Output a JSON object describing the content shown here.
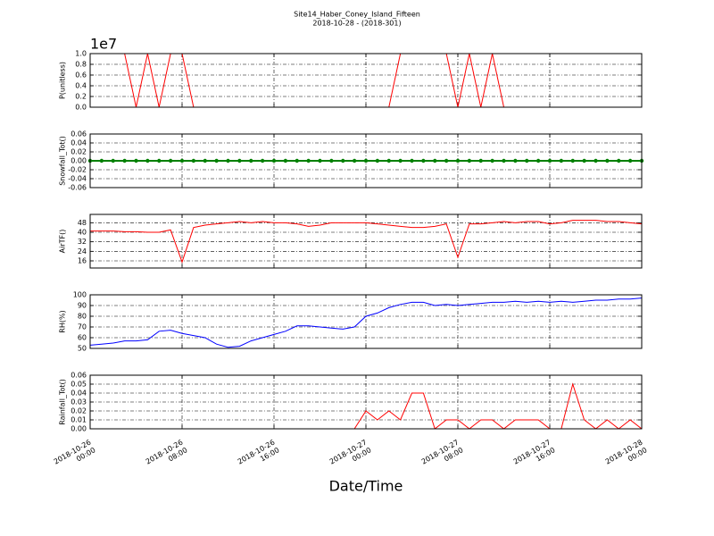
{
  "chart_data": [
    {
      "type": "line",
      "title": "Site14_Haber_Coney_Island_Fifteen",
      "subtitle": "2018-10-28 - (2018-301)",
      "ylabel": "P(unitless)",
      "offset_label": "1e7",
      "x": [
        "2018-10-26 00:00",
        "2018-10-26 01:00",
        "2018-10-26 02:00",
        "2018-10-26 03:00",
        "2018-10-26 04:00",
        "2018-10-26 05:00",
        "2018-10-26 06:00",
        "2018-10-26 07:00",
        "2018-10-26 08:00",
        "2018-10-26 09:00",
        "2018-10-26 10:00",
        "2018-10-26 11:00",
        "2018-10-26 12:00",
        "2018-10-26 13:00",
        "2018-10-26 14:00",
        "2018-10-26 15:00",
        "2018-10-26 16:00",
        "2018-10-26 17:00",
        "2018-10-26 18:00",
        "2018-10-26 19:00",
        "2018-10-26 20:00",
        "2018-10-26 21:00",
        "2018-10-26 22:00",
        "2018-10-26 23:00",
        "2018-10-27 00:00",
        "2018-10-27 01:00",
        "2018-10-27 02:00",
        "2018-10-27 03:00",
        "2018-10-27 04:00",
        "2018-10-27 05:00",
        "2018-10-27 06:00",
        "2018-10-27 07:00",
        "2018-10-27 08:00",
        "2018-10-27 09:00",
        "2018-10-27 10:00",
        "2018-10-27 11:00",
        "2018-10-27 12:00",
        "2018-10-27 13:00",
        "2018-10-27 14:00",
        "2018-10-27 15:00",
        "2018-10-27 16:00",
        "2018-10-27 17:00",
        "2018-10-27 18:00",
        "2018-10-27 19:00",
        "2018-10-27 20:00",
        "2018-10-27 21:00",
        "2018-10-27 22:00",
        "2018-10-27 23:00",
        "2018-10-28 00:00"
      ],
      "xlim": [
        "2018-10-26 00:00",
        "2018-10-28 00:00"
      ],
      "series": [
        {
          "color": "#ff0000",
          "values": [
            1,
            1,
            1,
            1,
            0,
            1,
            0,
            1,
            1,
            0,
            0,
            0,
            0,
            0,
            0,
            0,
            0,
            0,
            0,
            0,
            0,
            0,
            0,
            0,
            0,
            0,
            0,
            1,
            1,
            1,
            1,
            1,
            0,
            1,
            0,
            1,
            0,
            0,
            0,
            0,
            0,
            0,
            0,
            0,
            0,
            0,
            0,
            0,
            0
          ]
        }
      ],
      "ylim": [
        0,
        1
      ],
      "yticks": [
        {
          "value": 0,
          "label": "0.0"
        },
        {
          "value": 0.2,
          "label": "0.2"
        },
        {
          "value": 0.4,
          "label": "0.4"
        },
        {
          "value": 0.6,
          "label": "0.6"
        },
        {
          "value": 0.8,
          "label": "0.8"
        },
        {
          "value": 1,
          "label": "1.0"
        }
      ],
      "grid": true
    },
    {
      "type": "line",
      "ylabel": "Snowfall_Tot()",
      "x": [
        "2018-10-26 00:00",
        "2018-10-26 01:00",
        "2018-10-26 02:00",
        "2018-10-26 03:00",
        "2018-10-26 04:00",
        "2018-10-26 05:00",
        "2018-10-26 06:00",
        "2018-10-26 07:00",
        "2018-10-26 08:00",
        "2018-10-26 09:00",
        "2018-10-26 10:00",
        "2018-10-26 11:00",
        "2018-10-26 12:00",
        "2018-10-26 13:00",
        "2018-10-26 14:00",
        "2018-10-26 15:00",
        "2018-10-26 16:00",
        "2018-10-26 17:00",
        "2018-10-26 18:00",
        "2018-10-26 19:00",
        "2018-10-26 20:00",
        "2018-10-26 21:00",
        "2018-10-26 22:00",
        "2018-10-26 23:00",
        "2018-10-27 00:00",
        "2018-10-27 01:00",
        "2018-10-27 02:00",
        "2018-10-27 03:00",
        "2018-10-27 04:00",
        "2018-10-27 05:00",
        "2018-10-27 06:00",
        "2018-10-27 07:00",
        "2018-10-27 08:00",
        "2018-10-27 09:00",
        "2018-10-27 10:00",
        "2018-10-27 11:00",
        "2018-10-27 12:00",
        "2018-10-27 13:00",
        "2018-10-27 14:00",
        "2018-10-27 15:00",
        "2018-10-27 16:00",
        "2018-10-27 17:00",
        "2018-10-27 18:00",
        "2018-10-27 19:00",
        "2018-10-27 20:00",
        "2018-10-27 21:00",
        "2018-10-27 22:00",
        "2018-10-27 23:00",
        "2018-10-28 00:00"
      ],
      "xlim": [
        "2018-10-26 00:00",
        "2018-10-28 00:00"
      ],
      "series": [
        {
          "color": "#008000",
          "marker": true,
          "values": [
            0,
            0,
            0,
            0,
            0,
            0,
            0,
            0,
            0,
            0,
            0,
            0,
            0,
            0,
            0,
            0,
            0,
            0,
            0,
            0,
            0,
            0,
            0,
            0,
            0,
            0,
            0,
            0,
            0,
            0,
            0,
            0,
            0,
            0,
            0,
            0,
            0,
            0,
            0,
            0,
            0,
            0,
            0,
            0,
            0,
            0,
            0,
            0,
            0
          ]
        }
      ],
      "ylim": [
        -0.06,
        0.06
      ],
      "yticks": [
        -0.06,
        -0.04,
        -0.02,
        {
          "value": 0,
          "label": "0.00"
        },
        0.02,
        0.04,
        0.06
      ],
      "grid": true
    },
    {
      "type": "line",
      "ylabel": "AirTF()",
      "x": [
        "2018-10-26 00:00",
        "2018-10-26 01:00",
        "2018-10-26 02:00",
        "2018-10-26 03:00",
        "2018-10-26 04:00",
        "2018-10-26 05:00",
        "2018-10-26 06:00",
        "2018-10-26 07:00",
        "2018-10-26 08:00",
        "2018-10-26 09:00",
        "2018-10-26 10:00",
        "2018-10-26 11:00",
        "2018-10-26 12:00",
        "2018-10-26 13:00",
        "2018-10-26 14:00",
        "2018-10-26 15:00",
        "2018-10-26 16:00",
        "2018-10-26 17:00",
        "2018-10-26 18:00",
        "2018-10-26 19:00",
        "2018-10-26 20:00",
        "2018-10-26 21:00",
        "2018-10-26 22:00",
        "2018-10-26 23:00",
        "2018-10-27 00:00",
        "2018-10-27 01:00",
        "2018-10-27 02:00",
        "2018-10-27 03:00",
        "2018-10-27 04:00",
        "2018-10-27 05:00",
        "2018-10-27 06:00",
        "2018-10-27 07:00",
        "2018-10-27 08:00",
        "2018-10-27 09:00",
        "2018-10-27 10:00",
        "2018-10-27 11:00",
        "2018-10-27 12:00",
        "2018-10-27 13:00",
        "2018-10-27 14:00",
        "2018-10-27 15:00",
        "2018-10-27 16:00",
        "2018-10-27 17:00",
        "2018-10-27 18:00",
        "2018-10-27 19:00",
        "2018-10-27 20:00",
        "2018-10-27 21:00",
        "2018-10-27 22:00",
        "2018-10-27 23:00",
        "2018-10-28 00:00"
      ],
      "xlim": [
        "2018-10-26 00:00",
        "2018-10-28 00:00"
      ],
      "series": [
        {
          "color": "#ff0000",
          "values": [
            41,
            41,
            41,
            40.5,
            40.5,
            40,
            40,
            42,
            15,
            44,
            46,
            47,
            48,
            49,
            48,
            49,
            48,
            48,
            47,
            45,
            46,
            48,
            48,
            48,
            48,
            47,
            46,
            45,
            44,
            44,
            45,
            47,
            19,
            47,
            47,
            48,
            49,
            48,
            49,
            49,
            47,
            48,
            50,
            50,
            50,
            49,
            49,
            48,
            47
          ]
        }
      ],
      "ylim": [
        10,
        55
      ],
      "yticks": [
        16,
        24,
        32,
        40,
        48
      ],
      "grid": true
    },
    {
      "type": "line",
      "ylabel": "RH(%)",
      "x": [
        "2018-10-26 00:00",
        "2018-10-26 01:00",
        "2018-10-26 02:00",
        "2018-10-26 03:00",
        "2018-10-26 04:00",
        "2018-10-26 05:00",
        "2018-10-26 06:00",
        "2018-10-26 07:00",
        "2018-10-26 08:00",
        "2018-10-26 09:00",
        "2018-10-26 10:00",
        "2018-10-26 11:00",
        "2018-10-26 12:00",
        "2018-10-26 13:00",
        "2018-10-26 14:00",
        "2018-10-26 15:00",
        "2018-10-26 16:00",
        "2018-10-26 17:00",
        "2018-10-26 18:00",
        "2018-10-26 19:00",
        "2018-10-26 20:00",
        "2018-10-26 21:00",
        "2018-10-26 22:00",
        "2018-10-26 23:00",
        "2018-10-27 00:00",
        "2018-10-27 01:00",
        "2018-10-27 02:00",
        "2018-10-27 03:00",
        "2018-10-27 04:00",
        "2018-10-27 05:00",
        "2018-10-27 06:00",
        "2018-10-27 07:00",
        "2018-10-27 08:00",
        "2018-10-27 09:00",
        "2018-10-27 10:00",
        "2018-10-27 11:00",
        "2018-10-27 12:00",
        "2018-10-27 13:00",
        "2018-10-27 14:00",
        "2018-10-27 15:00",
        "2018-10-27 16:00",
        "2018-10-27 17:00",
        "2018-10-27 18:00",
        "2018-10-27 19:00",
        "2018-10-27 20:00",
        "2018-10-27 21:00",
        "2018-10-27 22:00",
        "2018-10-27 23:00",
        "2018-10-28 00:00"
      ],
      "xlim": [
        "2018-10-26 00:00",
        "2018-10-28 00:00"
      ],
      "series": [
        {
          "color": "#0000ff",
          "values": [
            53,
            54,
            55,
            57,
            57,
            58,
            66,
            67,
            64,
            62,
            60,
            54,
            51,
            52,
            57,
            60,
            63,
            66,
            71,
            71,
            70,
            69,
            68,
            70,
            80,
            83,
            88,
            91,
            93,
            93,
            90,
            91,
            90,
            91,
            92,
            93,
            93,
            94,
            93,
            94,
            93,
            94,
            93,
            94,
            95,
            95,
            96,
            96,
            97
          ]
        }
      ],
      "ylim": [
        50,
        100
      ],
      "yticks": [
        50,
        60,
        70,
        80,
        90,
        100
      ],
      "grid": true
    },
    {
      "type": "line",
      "ylabel": "Rainfall_Tot()",
      "xlabel": "Date/Time",
      "x": [
        "2018-10-26 00:00",
        "2018-10-26 01:00",
        "2018-10-26 02:00",
        "2018-10-26 03:00",
        "2018-10-26 04:00",
        "2018-10-26 05:00",
        "2018-10-26 06:00",
        "2018-10-26 07:00",
        "2018-10-26 08:00",
        "2018-10-26 09:00",
        "2018-10-26 10:00",
        "2018-10-26 11:00",
        "2018-10-26 12:00",
        "2018-10-26 13:00",
        "2018-10-26 14:00",
        "2018-10-26 15:00",
        "2018-10-26 16:00",
        "2018-10-26 17:00",
        "2018-10-26 18:00",
        "2018-10-26 19:00",
        "2018-10-26 20:00",
        "2018-10-26 21:00",
        "2018-10-26 22:00",
        "2018-10-26 23:00",
        "2018-10-27 00:00",
        "2018-10-27 01:00",
        "2018-10-27 02:00",
        "2018-10-27 03:00",
        "2018-10-27 04:00",
        "2018-10-27 05:00",
        "2018-10-27 06:00",
        "2018-10-27 07:00",
        "2018-10-27 08:00",
        "2018-10-27 09:00",
        "2018-10-27 10:00",
        "2018-10-27 11:00",
        "2018-10-27 12:00",
        "2018-10-27 13:00",
        "2018-10-27 14:00",
        "2018-10-27 15:00",
        "2018-10-27 16:00",
        "2018-10-27 17:00",
        "2018-10-27 18:00",
        "2018-10-27 19:00",
        "2018-10-27 20:00",
        "2018-10-27 21:00",
        "2018-10-27 22:00",
        "2018-10-27 23:00",
        "2018-10-28 00:00"
      ],
      "xlim": [
        "2018-10-26 00:00",
        "2018-10-28 00:00"
      ],
      "xticks": [
        {
          "value": "2018-10-26 00:00",
          "label": [
            "2018-10-26",
            "00:00"
          ]
        },
        {
          "value": "2018-10-26 08:00",
          "label": [
            "2018-10-26",
            "08:00"
          ]
        },
        {
          "value": "2018-10-26 16:00",
          "label": [
            "2018-10-26",
            "16:00"
          ]
        },
        {
          "value": "2018-10-27 00:00",
          "label": [
            "2018-10-27",
            "00:00"
          ]
        },
        {
          "value": "2018-10-27 08:00",
          "label": [
            "2018-10-27",
            "08:00"
          ]
        },
        {
          "value": "2018-10-27 16:00",
          "label": [
            "2018-10-27",
            "16:00"
          ]
        },
        {
          "value": "2018-10-28 00:00",
          "label": [
            "2018-10-28",
            "00:00"
          ]
        }
      ],
      "series": [
        {
          "color": "#ff0000",
          "values": [
            0,
            0,
            0,
            0,
            0,
            0,
            0,
            0,
            0,
            0,
            0,
            0,
            0,
            0,
            0,
            0,
            0,
            0,
            0,
            0,
            0,
            0,
            0,
            0,
            0.02,
            0.01,
            0.02,
            0.01,
            0.04,
            0.04,
            0,
            0.01,
            0.01,
            0,
            0.01,
            0.01,
            0,
            0.01,
            0.01,
            0.01,
            0,
            0,
            0.05,
            0.01,
            0,
            0.01,
            0,
            0.01,
            0
          ]
        }
      ],
      "ylim": [
        0,
        0.06
      ],
      "yticks": [
        {
          "value": 0,
          "label": "0.00"
        },
        0.01,
        0.02,
        0.03,
        0.04,
        0.05,
        0.06
      ],
      "grid": true
    }
  ]
}
